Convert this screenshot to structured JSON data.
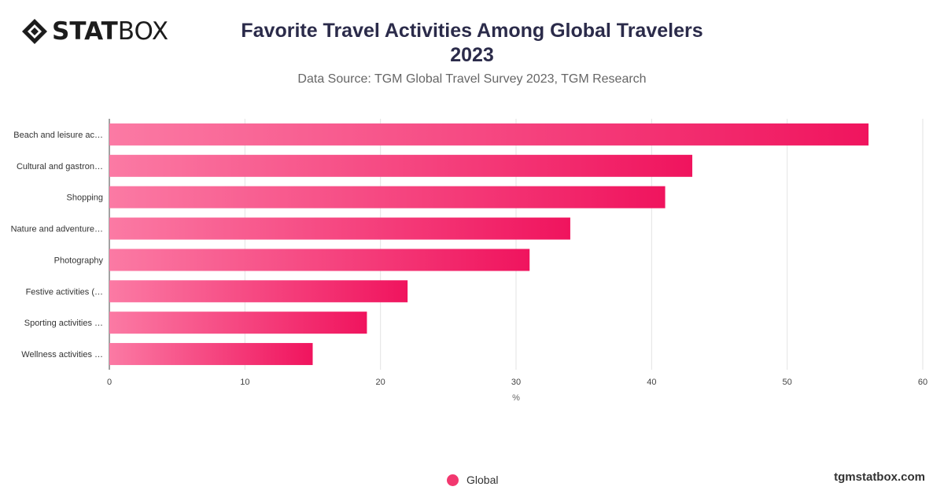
{
  "brand": {
    "logo_bold": "STAT",
    "logo_light": "BOX",
    "footer": "tgmstatbox.com"
  },
  "header": {
    "title": "Favorite Travel Activities Among Global Travelers 2023",
    "subtitle": "Data Source: TGM Global Travel Survey 2023, TGM Research"
  },
  "colors": {
    "bar_start": "#fb7aa4",
    "bar_end": "#f0145e",
    "accent": "#f2386f"
  },
  "chart_data": {
    "type": "bar",
    "orientation": "horizontal",
    "categories": [
      "Beach and leisure ac…",
      "Cultural and gastron…",
      "Shopping",
      "Nature and adventure…",
      "Photography",
      "Festive activities (…",
      "Sporting activities …",
      "Wellness activities …"
    ],
    "series": [
      {
        "name": "Global",
        "values": [
          56,
          43,
          41,
          34,
          31,
          22,
          19,
          15
        ]
      }
    ],
    "xlabel": "%",
    "xlim": [
      0,
      60
    ],
    "xticks": [
      0,
      10,
      20,
      30,
      40,
      50,
      60
    ],
    "grid": true,
    "legend_position": "bottom"
  }
}
